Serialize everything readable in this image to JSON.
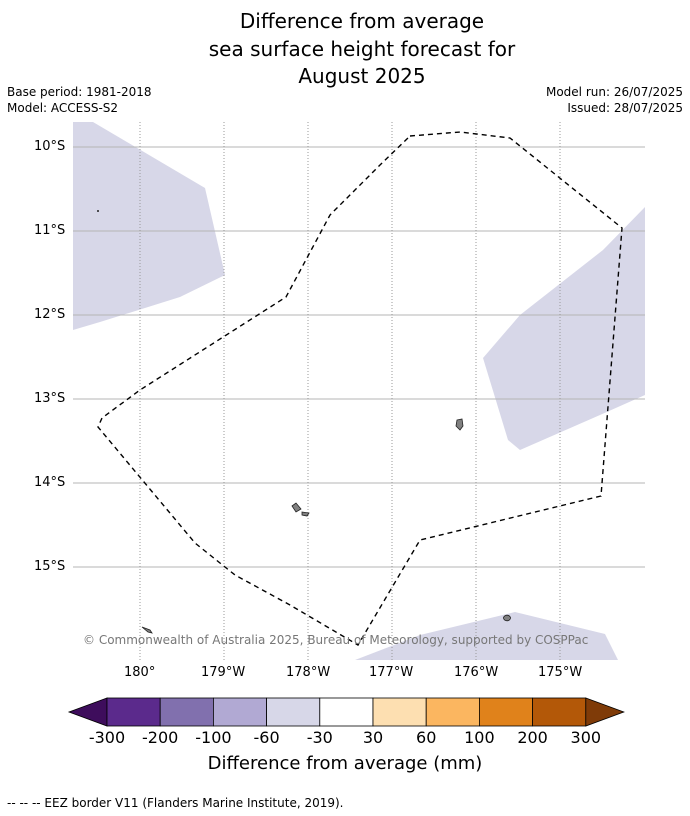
{
  "title": {
    "line1": "Difference from average",
    "line2": "sea surface height forecast for",
    "line3": "August 2025"
  },
  "meta": {
    "base_period": "Base period: 1981-2018",
    "model": "Model: ACCESS-S2",
    "model_run": "Model run: 26/07/2025",
    "issued": "Issued: 28/07/2025"
  },
  "map": {
    "latitude_labels": [
      "10°S",
      "11°S",
      "12°S",
      "13°S",
      "14°S",
      "15°S"
    ],
    "longitude_labels": [
      "180°",
      "179°W",
      "178°W",
      "177°W",
      "176°W",
      "175°W"
    ],
    "copyright": "© Commonwealth of Australia 2025, Bureau of Meteorology, supported by COSPPac",
    "anomaly_fill_color": "#d7d7e8",
    "land_color": "#808080"
  },
  "colorbar": {
    "ticks": [
      "-300",
      "-200",
      "-100",
      "-60",
      "-30",
      "30",
      "60",
      "100",
      "200",
      "300"
    ],
    "colors": [
      "#3e0d5c",
      "#5b2a8c",
      "#8170ae",
      "#b1a9d3",
      "#d7d7e8",
      "#ffffff",
      "#fddfb1",
      "#fbb660",
      "#e0821b",
      "#b35808",
      "#7f3b08"
    ],
    "label": "Difference from average (mm)"
  },
  "footnote": "--  --  -- EEZ border V11 (Flanders Marine Institute, 2019)."
}
